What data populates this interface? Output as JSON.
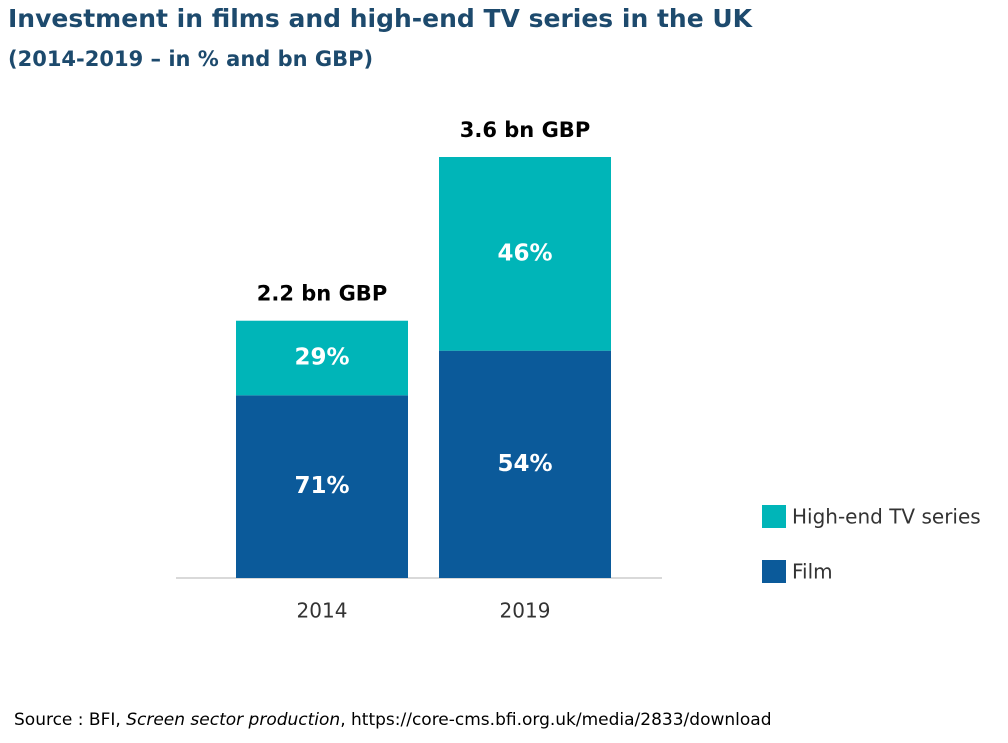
{
  "chart_data": {
    "type": "bar",
    "stacked": true,
    "title": "Investment in films and high-end TV series in the UK",
    "subtitle": "(2014-2019 – in % and bn GBP)",
    "categories": [
      "2014",
      "2019"
    ],
    "series": [
      {
        "name": "Film",
        "color": "#0b5a9a",
        "values": [
          71,
          54
        ],
        "value_labels": [
          "71%",
          "54%"
        ]
      },
      {
        "name": "High-end TV series",
        "color": "#00b5b8",
        "values": [
          29,
          46
        ],
        "value_labels": [
          "29%",
          "46%"
        ]
      }
    ],
    "totals": {
      "values": [
        2.2,
        3.6
      ],
      "value_labels": [
        "2.2 bn GBP",
        "3.6 bn GBP"
      ]
    },
    "source": [
      "Source : BFI, ",
      "Screen sector production",
      ", https://core-cms.bfi.org.uk/media/2833/download"
    ]
  }
}
